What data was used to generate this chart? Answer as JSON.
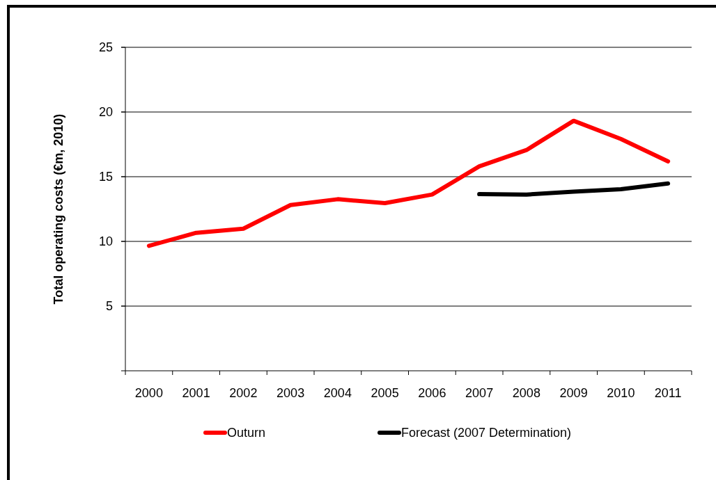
{
  "chart_data": {
    "type": "line",
    "ylabel": "Total operating costs (€m, 2010)",
    "categories": [
      "2000",
      "2001",
      "2002",
      "2003",
      "2004",
      "2005",
      "2006",
      "2007",
      "2008",
      "2009",
      "2010",
      "2011"
    ],
    "series": [
      {
        "name": "Outurn",
        "color": "#ff0000",
        "values": [
          9.66,
          10.66,
          10.98,
          12.81,
          13.26,
          12.96,
          13.62,
          15.8,
          17.06,
          19.32,
          17.92,
          16.18
        ]
      },
      {
        "name": "Forecast (2007 Determination)",
        "color": "#000000",
        "values": [
          null,
          null,
          null,
          null,
          null,
          null,
          null,
          13.65,
          13.62,
          13.85,
          14.03,
          14.48
        ]
      }
    ],
    "ylim": [
      0,
      25
    ],
    "yticks": [
      {
        "value": 0,
        "label": null
      },
      5,
      10,
      15,
      20,
      25
    ],
    "grid": "y",
    "legend": "bottom",
    "marker": "none",
    "line_style": "solid"
  }
}
